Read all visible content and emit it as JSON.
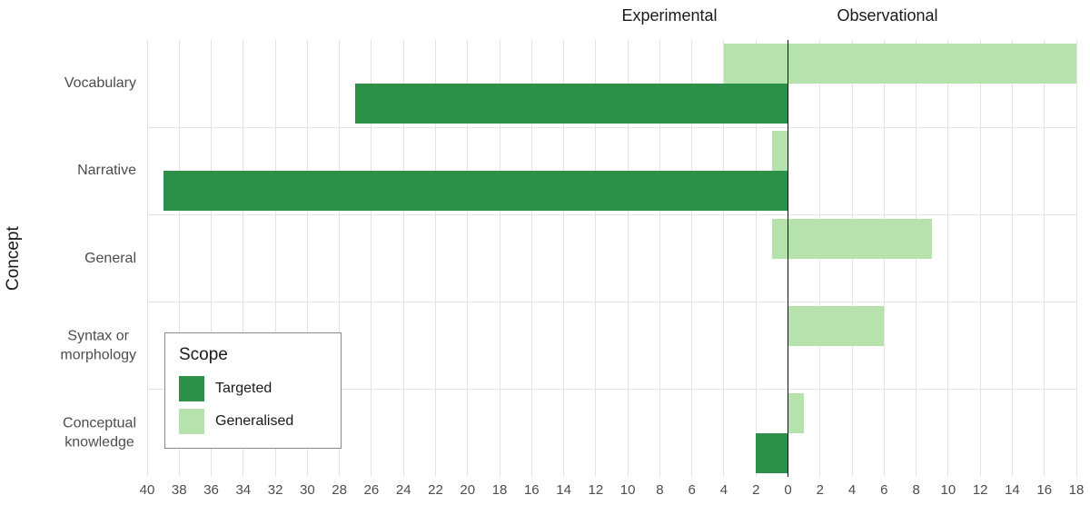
{
  "chart_data": {
    "type": "bar",
    "variant": "diverging-horizontal",
    "title": "",
    "facets": [
      "Experimental",
      "Observational"
    ],
    "ylabel": "Concept",
    "categories": [
      "Vocabulary",
      "Narrative",
      "General",
      "Syntax or morphology",
      "Conceptual knowledge"
    ],
    "category_label_lines": [
      [
        "Vocabulary"
      ],
      [
        "Narrative"
      ],
      [
        "General"
      ],
      [
        "Syntax or",
        "morphology"
      ],
      [
        "Conceptual",
        "knowledge"
      ]
    ],
    "series": [
      {
        "name": "Targeted",
        "color": "#2d9048",
        "slot": "bottom",
        "experimental": [
          27,
          39,
          0,
          0,
          2
        ],
        "observational": [
          0,
          0,
          0,
          0,
          0
        ]
      },
      {
        "name": "Generalised",
        "color": "#b6e2ae",
        "slot": "top",
        "experimental": [
          4,
          1,
          1,
          0,
          0
        ],
        "observational": [
          18,
          0,
          9,
          6,
          1
        ]
      }
    ],
    "x_axis": {
      "left_max": 40,
      "right_max": 18,
      "tick_step": 2,
      "ticks": [
        "40",
        "38",
        "36",
        "34",
        "32",
        "30",
        "28",
        "26",
        "24",
        "22",
        "20",
        "18",
        "16",
        "14",
        "12",
        "10",
        "8",
        "6",
        "4",
        "2",
        "0",
        "2",
        "4",
        "6",
        "8",
        "10",
        "12",
        "14",
        "16",
        "18"
      ]
    },
    "legend": {
      "title": "Scope",
      "entries": [
        {
          "label": "Targeted",
          "color": "#2d9048"
        },
        {
          "label": "Generalised",
          "color": "#b6e2ae"
        }
      ]
    },
    "grid": {
      "color": "#e3e3e3",
      "zero_line_color": "#111111",
      "background": "#ffffff"
    }
  }
}
